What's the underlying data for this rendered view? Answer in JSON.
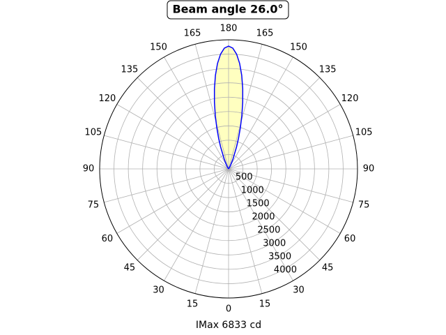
{
  "chart_data": {
    "type": "polar",
    "title": "Beam angle 26.0°",
    "xlabel": "IMax 6833 cd",
    "rlim": [
      0,
      4500
    ],
    "rticks": [
      500,
      1000,
      1500,
      2000,
      2500,
      3000,
      3500,
      4000
    ],
    "thetaticks": [
      0,
      15,
      30,
      45,
      60,
      75,
      90,
      105,
      120,
      135,
      150,
      165,
      180,
      {
        "value": 195,
        "label": "165"
      },
      {
        "value": 210,
        "label": "150"
      },
      {
        "value": 225,
        "label": "135"
      },
      {
        "value": 240,
        "label": "120"
      },
      {
        "value": 255,
        "label": "105"
      },
      {
        "value": 270,
        "label": "90"
      },
      {
        "value": 285,
        "label": "75"
      },
      {
        "value": 300,
        "label": "60"
      },
      {
        "value": 315,
        "label": "45"
      },
      {
        "value": 330,
        "label": "30"
      },
      {
        "value": 345,
        "label": "15"
      }
    ],
    "grid": true,
    "series": [
      {
        "color": "#0000ff",
        "fill": "#ffffc0",
        "theta": [
          140,
          148,
          152,
          156,
          160,
          162,
          164,
          166,
          168,
          170,
          172,
          174,
          176,
          178,
          180,
          182,
          184,
          186,
          188,
          190,
          192,
          194,
          196,
          198,
          200,
          204,
          208,
          212,
          220
        ],
        "r": [
          0,
          53,
          154,
          383,
          813,
          1121,
          1490,
          1914,
          2373,
          2844,
          3296,
          3696,
          4010,
          4211,
          4280,
          4211,
          4010,
          3696,
          3296,
          2844,
          2373,
          1914,
          1490,
          1121,
          813,
          383,
          154,
          53,
          0
        ]
      }
    ]
  }
}
